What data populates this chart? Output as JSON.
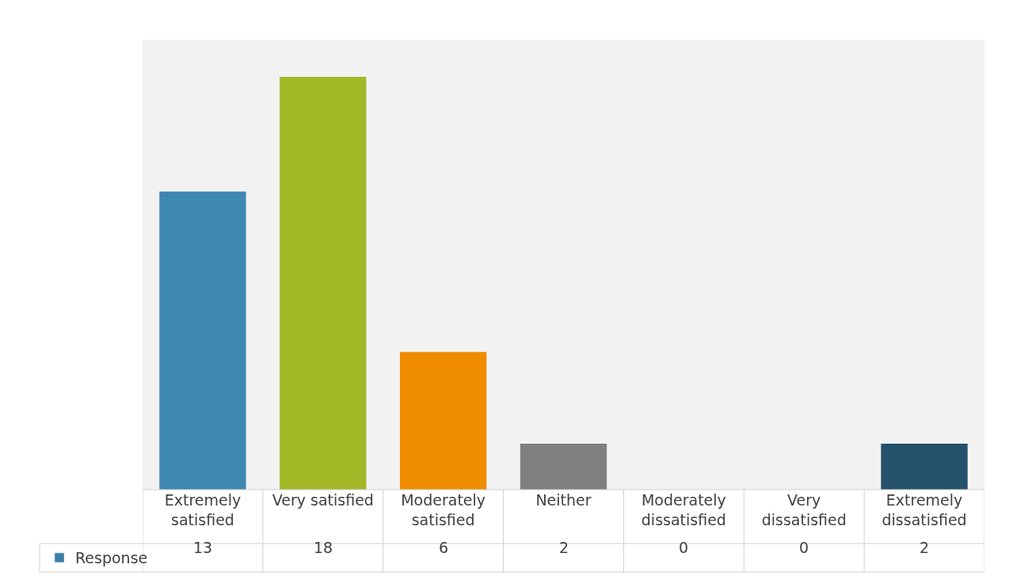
{
  "chart_data": {
    "type": "bar",
    "categories": [
      "Extremely satisfied",
      "Very satisfied",
      "Moderately satisfied",
      "Neither",
      "Moderately dissatisfied",
      "Very dissatisfied",
      "Extremely dissatisfied"
    ],
    "series": [
      {
        "name": "Response",
        "color": "#3b7fa8",
        "colors": [
          "#3e87b1",
          "#a3b826",
          "#f08c00",
          "#7f7f7f",
          null,
          null,
          "#24516b"
        ],
        "values": [
          13,
          18,
          6,
          2,
          0,
          0,
          2
        ]
      }
    ],
    "data_labels": true,
    "legend": "bottom left",
    "grid": false
  }
}
